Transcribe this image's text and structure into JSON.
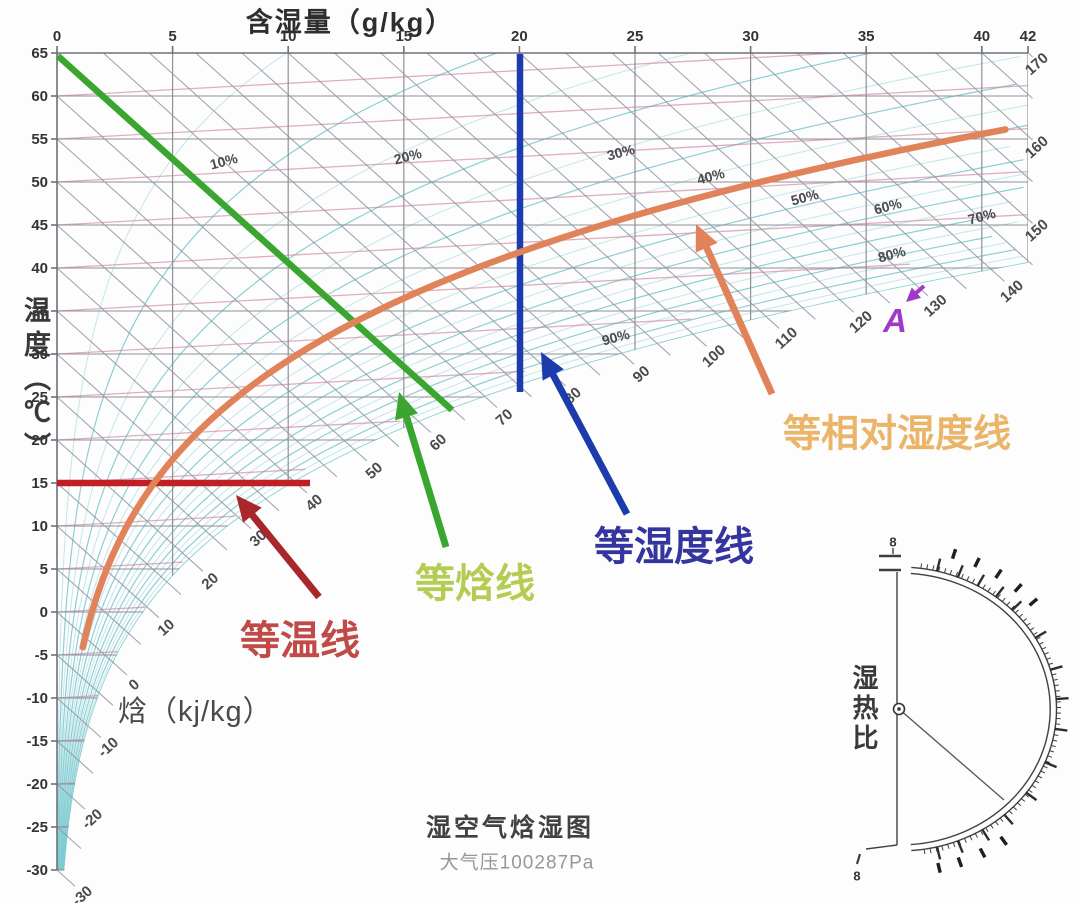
{
  "title_top": "含湿量（g/kg）",
  "axis_left": {
    "label": "温度（℃）"
  },
  "enthalpy_label": "焓（kj/kg）",
  "footer": {
    "title": "湿空气焓湿图",
    "subtitle": "大气压100287Pa"
  },
  "point_marker": {
    "label": "A",
    "color": "#a238c8"
  },
  "protractor": {
    "label": "湿热比",
    "top_symbol": "8",
    "bottom_symbol": "8"
  },
  "legend": [
    {
      "label": "等温线",
      "text_color": "#bf4a48",
      "line_color": "#c01f24"
    },
    {
      "label": "等焓线",
      "text_color": "#b5cc52",
      "line_color": "#3aa52f"
    },
    {
      "label": "等湿度线",
      "text_color": "#34359e",
      "line_color": "#1c3cae"
    },
    {
      "label": "等相对湿度线",
      "text_color": "#eab469",
      "line_color": "#e0835a"
    }
  ],
  "chart_data": {
    "type": "psychrometric",
    "title": "湿空气焓湿图",
    "pressure_note": "大气压100287Pa",
    "x_axis": {
      "label": "含湿量（g/kg）",
      "position": "top",
      "range": [
        0,
        42
      ],
      "ticks": [
        0,
        5,
        10,
        15,
        20,
        25,
        30,
        35,
        40,
        42
      ]
    },
    "y_axis": {
      "label": "温度（℃）",
      "range": [
        -30,
        65
      ],
      "ticks": [
        65,
        60,
        55,
        50,
        45,
        40,
        35,
        30,
        25,
        20,
        15,
        10,
        5,
        0,
        -5,
        -10,
        -15,
        -20,
        -25,
        -30
      ]
    },
    "enthalpy_lines": {
      "label": "焓（kj/kg）",
      "step": 5,
      "labeled_values": [
        -30,
        -20,
        -10,
        0,
        10,
        20,
        30,
        40,
        50,
        60,
        70,
        80,
        90,
        100,
        110,
        120,
        130,
        140,
        150,
        160,
        170
      ]
    },
    "rh_curves": {
      "drawn_step_percent": 5,
      "max_percent": 100,
      "labels": [
        "10%",
        "20%",
        "30%",
        "40%",
        "50%",
        "60%",
        "70%",
        "80%",
        "90%"
      ]
    },
    "highlighted_lines": [
      {
        "name": "等温线",
        "type": "isotherm",
        "value": "15℃",
        "color": "#c01f24"
      },
      {
        "name": "等焓线",
        "type": "iso-enthalpy",
        "value": "65 kJ/kg",
        "color": "#3aa52f"
      },
      {
        "name": "等湿度线",
        "type": "iso-moisture",
        "value": "20 g/kg",
        "color": "#1c3cae"
      },
      {
        "name": "等相对湿度线",
        "type": "iso-relative-humidity",
        "value": "40%",
        "color": "#e0835a"
      }
    ],
    "marked_point": {
      "label": "A"
    },
    "protractor": {
      "label": "湿热比"
    }
  }
}
